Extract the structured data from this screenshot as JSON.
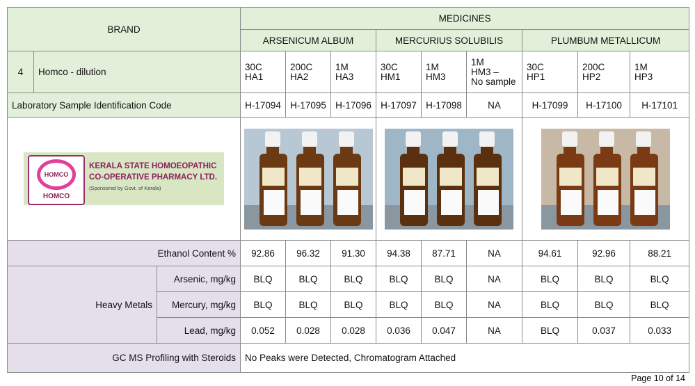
{
  "header": {
    "brand": "BRAND",
    "medicines": "MEDICINES",
    "groups": [
      "ARSENICUM ALBUM",
      "MERCURIUS SOLUBILIS",
      "PLUMBUM METALLICUM"
    ]
  },
  "product": {
    "number": "4",
    "name": "Homco - dilution",
    "potencies": [
      [
        "30C",
        "HA1"
      ],
      [
        "200C",
        "HA2"
      ],
      [
        "1M",
        "HA3"
      ],
      [
        "30C",
        "HM1"
      ],
      [
        "1M",
        "HM3"
      ],
      [
        "1M",
        "HM3 –",
        "No sample"
      ],
      [
        "30C",
        "HP1"
      ],
      [
        "200C",
        "HP2"
      ],
      [
        "1M",
        "HP3"
      ]
    ]
  },
  "lab_code": {
    "label": "Laboratory Sample Identification Code",
    "values": [
      "H-17094",
      "H-17095",
      "H-17096",
      "H-17097",
      "H-17098",
      "NA",
      "H-17099",
      "H-17100",
      "H-17101"
    ]
  },
  "logo": {
    "emblem": "HOMCO",
    "line1": "KERALA STATE HOMOEOPATHIC",
    "line2": "CO-OPERATIVE PHARMACY LTD.",
    "line3": "(Sponsored by Govt. of Kerala)",
    "brand": "HOMCO"
  },
  "ethanol": {
    "label": "Ethanol Content %",
    "values": [
      "92.86",
      "96.32",
      "91.30",
      "94.38",
      "87.71",
      "NA",
      "94.61",
      "92.96",
      "88.21"
    ]
  },
  "heavy_metals": {
    "label": "Heavy Metals",
    "rows": [
      {
        "label": "Arsenic, mg/kg",
        "values": [
          "BLQ",
          "BLQ",
          "BLQ",
          "BLQ",
          "BLQ",
          "NA",
          "BLQ",
          "BLQ",
          "BLQ"
        ]
      },
      {
        "label": "Mercury, mg/kg",
        "values": [
          "BLQ",
          "BLQ",
          "BLQ",
          "BLQ",
          "BLQ",
          "NA",
          "BLQ",
          "BLQ",
          "BLQ"
        ]
      },
      {
        "label": "Lead, mg/kg",
        "values": [
          "0.052",
          "0.028",
          "0.028",
          "0.036",
          "0.047",
          "NA",
          "BLQ",
          "0.037",
          "0.033"
        ]
      }
    ]
  },
  "gcms": {
    "label": "GC MS Profiling with Steroids",
    "value": "No Peaks were Detected, Chromatogram Attached"
  },
  "footer": {
    "page": "Page 10 of 14"
  }
}
